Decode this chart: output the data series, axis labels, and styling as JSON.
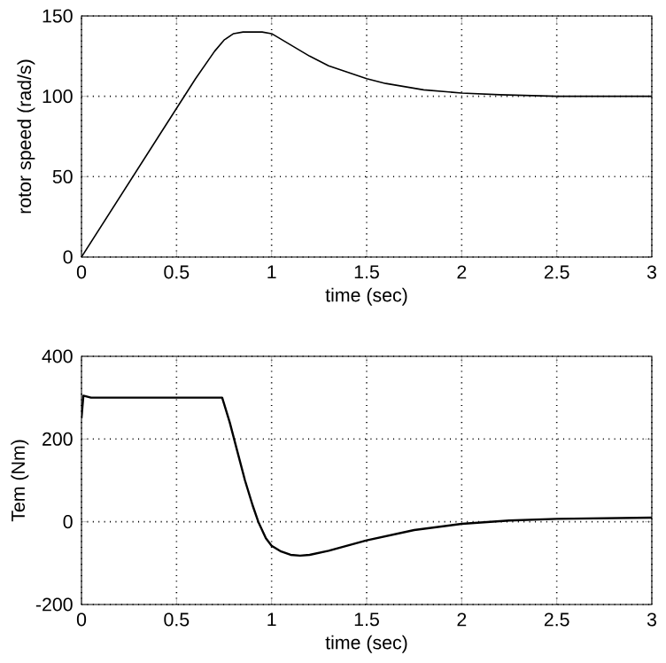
{
  "chart_data": [
    {
      "type": "line",
      "xlabel": "time (sec)",
      "ylabel": "rotor speed (rad/s)",
      "xlim": [
        0,
        3
      ],
      "ylim": [
        0,
        150
      ],
      "xticks": [
        0,
        0.5,
        1,
        1.5,
        2,
        2.5,
        3
      ],
      "yticks": [
        0,
        50,
        100,
        150
      ],
      "grid": true,
      "x": [
        0,
        0.2,
        0.4,
        0.6,
        0.7,
        0.75,
        0.8,
        0.85,
        0.9,
        0.95,
        1.0,
        1.1,
        1.2,
        1.3,
        1.4,
        1.5,
        1.6,
        1.8,
        2.0,
        2.2,
        2.5,
        3.0
      ],
      "series": [
        {
          "color": "#000000",
          "values": [
            0,
            37,
            74,
            111,
            128,
            135,
            139,
            140,
            140,
            140,
            139,
            132,
            125,
            119,
            115,
            111,
            108,
            104,
            102,
            101,
            100,
            100
          ]
        }
      ]
    },
    {
      "type": "line",
      "xlabel": "time (sec)",
      "ylabel": "Tem (Nm)",
      "xlim": [
        0,
        3
      ],
      "ylim": [
        -200,
        400
      ],
      "xticks": [
        0,
        0.5,
        1,
        1.5,
        2,
        2.5,
        3
      ],
      "yticks": [
        -200,
        0,
        200,
        400
      ],
      "grid": true,
      "x": [
        0,
        0.01,
        0.05,
        0.3,
        0.6,
        0.74,
        0.78,
        0.82,
        0.86,
        0.9,
        0.93,
        0.97,
        1.0,
        1.05,
        1.1,
        1.15,
        1.2,
        1.3,
        1.5,
        1.75,
        2.0,
        2.25,
        2.5,
        3.0
      ],
      "series": [
        {
          "color": "#000000",
          "values": [
            250,
            305,
            300,
            300,
            300,
            300,
            240,
            170,
            100,
            40,
            0,
            -40,
            -58,
            -72,
            -80,
            -82,
            -80,
            -70,
            -45,
            -20,
            -5,
            3,
            7,
            10
          ]
        }
      ]
    }
  ]
}
